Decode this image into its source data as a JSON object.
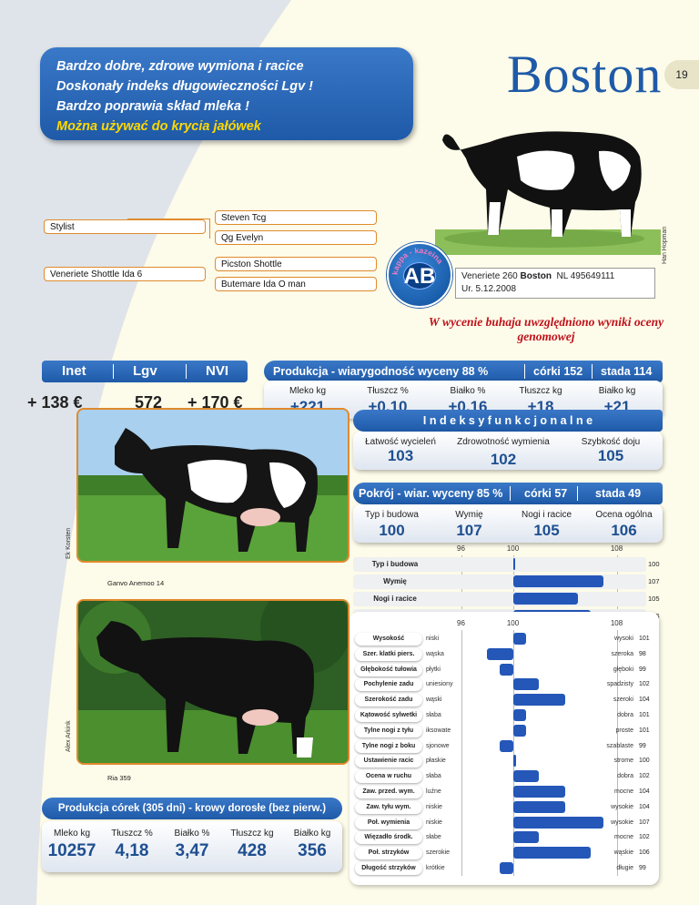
{
  "header": {
    "lines": [
      "Bardzo dobre, zdrowe wymiona i racice",
      "Doskonały indeks długowieczności Lgv !",
      "Bardzo poprawia skład mleka !",
      "Można używać do krycia jałówek"
    ],
    "title": "Boston",
    "page": "19"
  },
  "credits": {
    "bull": "Han Hopman",
    "dam": "Ek Korsten",
    "grand": "Alex Arkink"
  },
  "pedigree": {
    "sire": "Stylist",
    "sire_sire": "Steven Tcg",
    "sire_dam": "Qg Evelyn",
    "dam": "Veneriete Shottle Ida 6",
    "dam_sire": "Picston Shottle",
    "dam_dam": "Butemare Ida O man"
  },
  "logo": {
    "ring": "kappa - kazeina",
    "text": "AB"
  },
  "bull_info": {
    "name_prefix": "Veneriete 260",
    "name": "Boston",
    "reg": "NL 495649111",
    "born": "Ur. 5.12.2008"
  },
  "genomic_note": "W wycenie buhaja uwzględniono wyniki oceny genomowej",
  "indices": {
    "labels": [
      "Inet",
      "Lgv",
      "NVI"
    ],
    "values": [
      "+ 138 €",
      "572",
      "+ 170 €"
    ]
  },
  "production": {
    "title": "Produkcja - wiarygodność wyceny 88 %",
    "daughters": "córki 152",
    "herds": "stada 114",
    "labels": [
      "Mleko kg",
      "Tłuszcz %",
      "Białko %",
      "Tłuszcz kg",
      "Białko kg"
    ],
    "values": [
      "+221",
      "+0,10",
      "+0,16",
      "+18",
      "+21"
    ]
  },
  "functional": {
    "title": "I n d e k s y   f u n k c j o n a l n e",
    "labels": [
      "Łatwość wycieleń",
      "Zdrowotność wymienia",
      "Szybkość doju"
    ],
    "values": [
      "103",
      "102",
      "105"
    ]
  },
  "type_section": {
    "title": "Pokrój - wiar. wyceny 85 %",
    "daughters": "córki 57",
    "herds": "stada 49",
    "labels": [
      "Typ i budowa",
      "Wymię",
      "Nogi i racice",
      "Ocena ogólna"
    ],
    "values": [
      "100",
      "107",
      "105",
      "106"
    ],
    "ticks": [
      "96",
      "100",
      "108"
    ]
  },
  "chart_data": {
    "type": "bar",
    "summary": {
      "categories": [
        "Typ i budowa",
        "Wymię",
        "Nogi i racice",
        "Ocena ogólna"
      ],
      "values": [
        100,
        107,
        105,
        106
      ],
      "ticks": [
        96,
        100,
        108
      ],
      "xlim": [
        94,
        110
      ]
    },
    "traits": [
      {
        "name": "Wysokość",
        "low": "niski",
        "high": "wysoki",
        "value": 101
      },
      {
        "name": "Szer. klatki piers.",
        "low": "wąska",
        "high": "szeroka",
        "value": 98
      },
      {
        "name": "Głębokość tułowia",
        "low": "płytki",
        "high": "głęboki",
        "value": 99
      },
      {
        "name": "Pochylenie zadu",
        "low": "uniesiony",
        "high": "spadzisty",
        "value": 102
      },
      {
        "name": "Szerokość zadu",
        "low": "wąski",
        "high": "szeroki",
        "value": 104
      },
      {
        "name": "Kątowość sylwetki",
        "low": "słaba",
        "high": "dobra",
        "value": 101
      },
      {
        "name": "Tylne nogi z tyłu",
        "low": "iksowate",
        "high": "proste",
        "value": 101
      },
      {
        "name": "Tylne nogi z boku",
        "low": "sjonowe",
        "high": "szablaste",
        "value": 99
      },
      {
        "name": "Ustawienie racic",
        "low": "płaskie",
        "high": "strome",
        "value": 100
      },
      {
        "name": "Ocena w ruchu",
        "low": "słaba",
        "high": "dobra",
        "value": 102
      },
      {
        "name": "Zaw. przed. wym.",
        "low": "luźne",
        "high": "mocne",
        "value": 104
      },
      {
        "name": "Zaw. tyłu wym.",
        "low": "niskie",
        "high": "wysokie",
        "value": 104
      },
      {
        "name": "Poł. wymienia",
        "low": "niskie",
        "high": "wysokie",
        "value": 107
      },
      {
        "name": "Więzadło środk.",
        "low": "słabe",
        "high": "mocne",
        "value": 102
      },
      {
        "name": "Poł. strzyków",
        "low": "szerokie",
        "high": "wąskie",
        "value": 106
      },
      {
        "name": "Długość strzyków",
        "low": "krótkie",
        "high": "długie",
        "value": 99
      }
    ]
  },
  "photos": {
    "dam_caption": "Ganvo Anemoo 14",
    "grand_caption": "Ria 359"
  },
  "daughters_prod": {
    "title": "Produkcja córek (305 dni) - krowy dorosłe (bez pierw.)",
    "labels": [
      "Mleko kg",
      "Tłuszcz %",
      "Białko %",
      "Tłuszcz kg",
      "Białko kg"
    ],
    "values": [
      "10257",
      "4,18",
      "3,47",
      "428",
      "356"
    ]
  },
  "colors": {
    "blue": "#1e5aa8",
    "bar": "#2457b8",
    "orange": "#e08a2c",
    "red": "#c0101a",
    "yellow": "#ffd800"
  }
}
